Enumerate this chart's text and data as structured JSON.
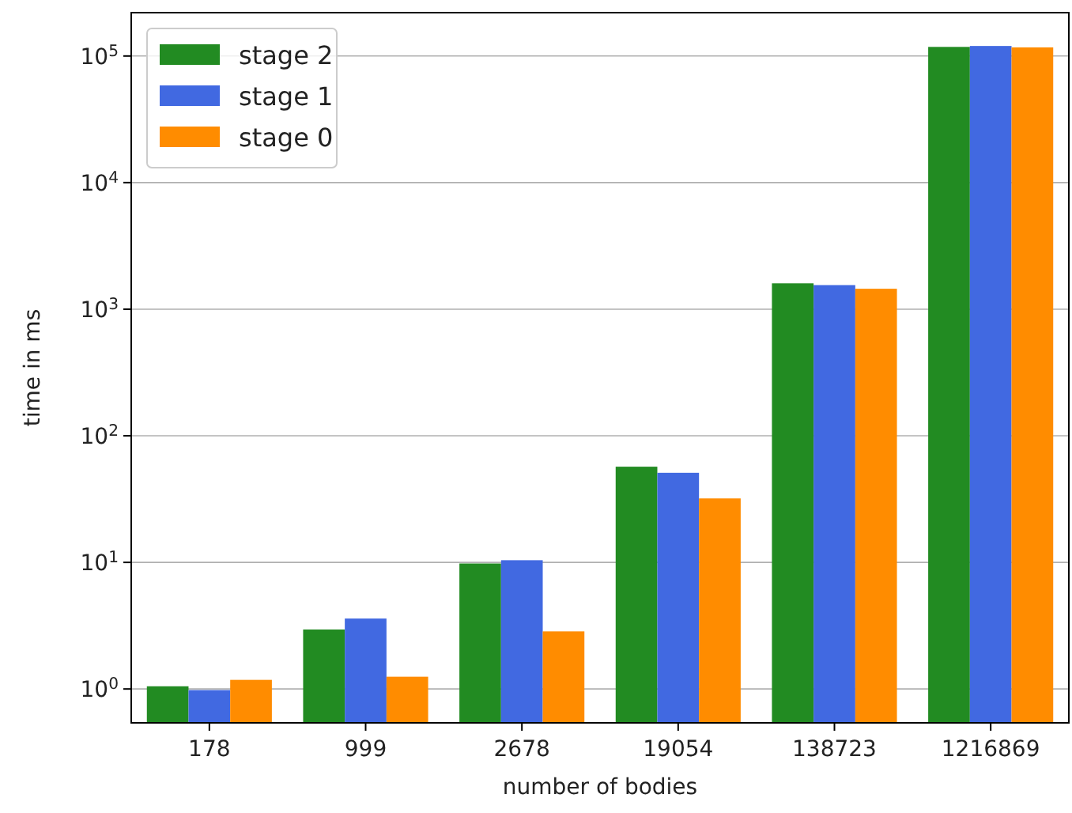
{
  "chart_data": {
    "type": "bar",
    "xlabel": "number of bodies",
    "ylabel": "time in ms",
    "categories": [
      "178",
      "999",
      "2678",
      "19054",
      "138723",
      "1216869"
    ],
    "series": [
      {
        "name": "stage 2",
        "color": "#228b22",
        "values": [
          1.05,
          2.95,
          9.8,
          57,
          1600,
          118000
        ]
      },
      {
        "name": "stage 1",
        "color": "#4169e1",
        "values": [
          0.98,
          3.6,
          10.4,
          51,
          1550,
          120000
        ]
      },
      {
        "name": "stage 0",
        "color": "#ff8c00",
        "values": [
          1.18,
          1.25,
          2.85,
          32,
          1450,
          117000
        ]
      }
    ],
    "log": true,
    "ylim": [
      0.54,
      220000
    ],
    "yticks": [
      {
        "value": 1,
        "label": "10$^{0}$"
      },
      {
        "value": 10,
        "label": "10$^{1}$"
      },
      {
        "value": 100,
        "label": "10$^{2}$"
      },
      {
        "value": 1000,
        "label": "10$^{3}$"
      },
      {
        "value": 10000,
        "label": "10$^{4}$"
      },
      {
        "value": 100000,
        "label": "10$^{5}$"
      }
    ],
    "grid": "y",
    "legend": "top left"
  }
}
